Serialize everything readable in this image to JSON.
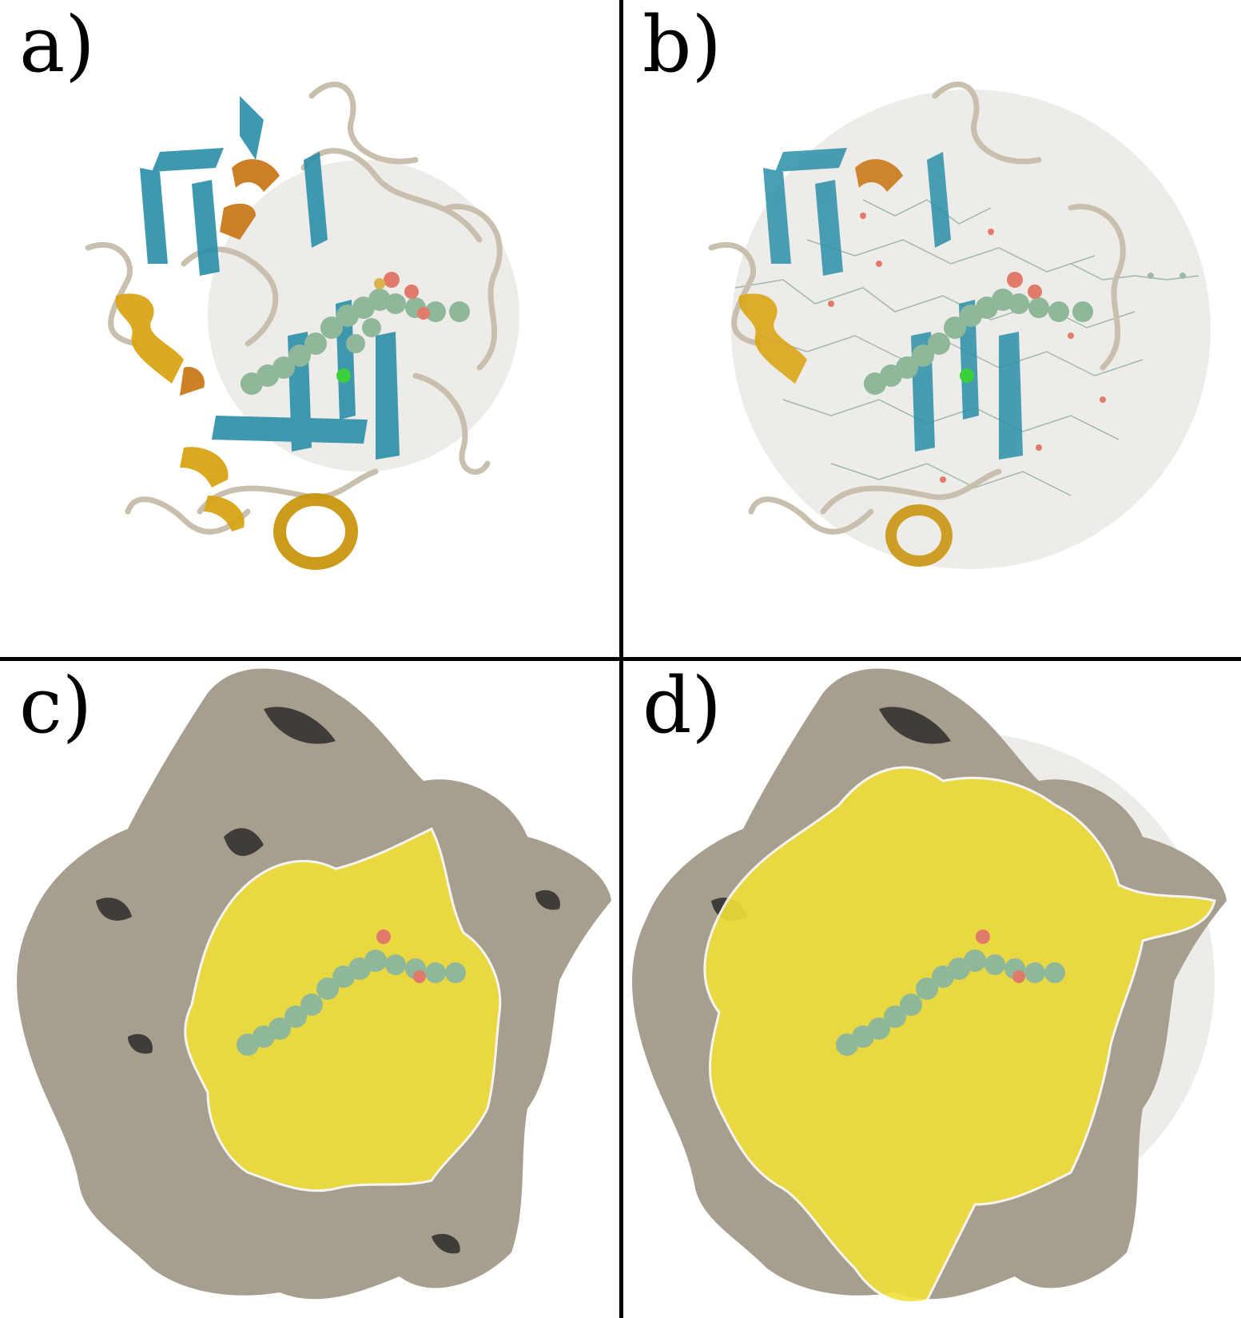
{
  "panels": [
    {
      "id": "a",
      "label": "a)",
      "representation": "cartoon"
    },
    {
      "id": "b",
      "label": "b)",
      "representation": "cartoon"
    },
    {
      "id": "c",
      "label": "c)",
      "representation": "surface"
    },
    {
      "id": "d",
      "label": "d)",
      "representation": "surface"
    }
  ],
  "colors": {
    "background": "#ffffff",
    "divider": "#000000",
    "sheet": "#2a8fa8",
    "helix_orange": "#c97a1a",
    "helix_gold": "#d9a516",
    "coil": "#c8bfae",
    "ligand": "#8fb79a",
    "oxygen": "#e07a6a",
    "sulfur": "#d8b24a",
    "chloride": "#3ccf3c",
    "sphere": "#e8e6e2",
    "surface_grey": "#a69f90",
    "surface_shadow": "#2e2c2a",
    "pocket_yellow": "#f2df3a"
  }
}
